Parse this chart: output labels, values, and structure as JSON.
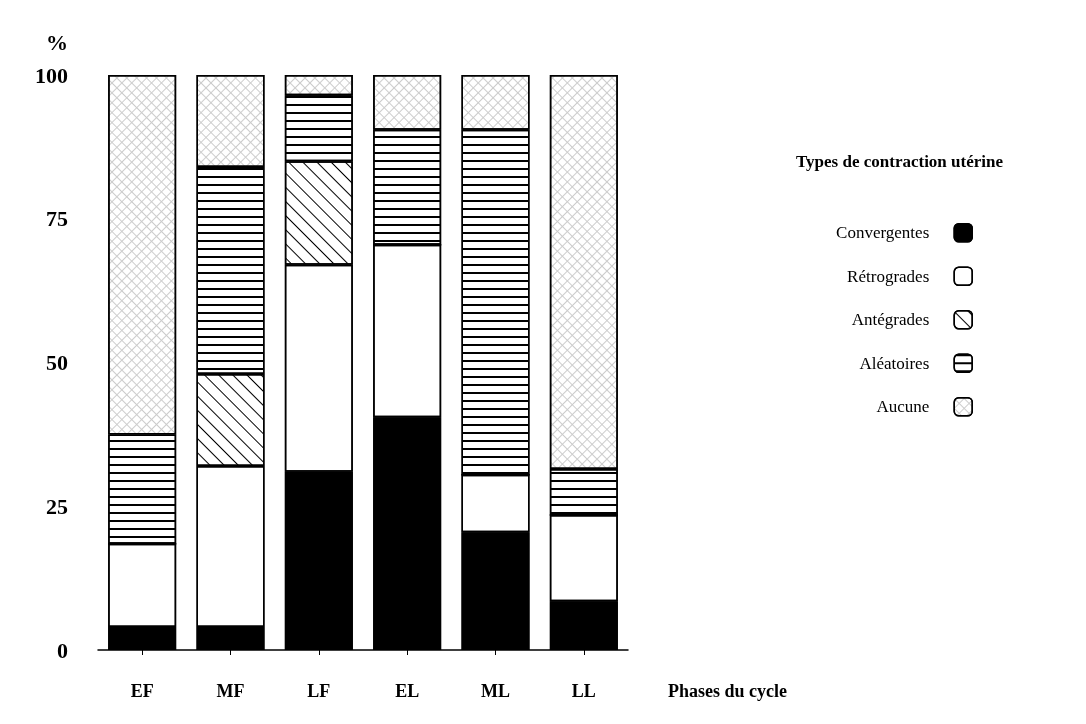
{
  "chart_data": {
    "type": "bar",
    "stacked": true,
    "ylabel": "%",
    "xlabel": "Phases du cycle",
    "legend_title": "Types de contraction utérine",
    "legend": "right",
    "grid": false,
    "categories": [
      "EF",
      "MF",
      "LF",
      "EL",
      "ML",
      "LL"
    ],
    "ylim": [
      0,
      100
    ],
    "yticks": [
      0,
      25,
      50,
      75,
      100
    ],
    "series": [
      {
        "name": "Convergentes",
        "color": "#000000",
        "values": [
          4,
          4,
          31,
          40.5,
          20.5,
          8.5
        ]
      },
      {
        "name": "Rétrogrades",
        "color": "#ffffff",
        "values": [
          14.5,
          28,
          36,
          30,
          10,
          15
        ]
      },
      {
        "name": "Antégrades",
        "color": "#ffffff",
        "values": [
          0,
          16,
          18,
          0,
          0,
          0
        ]
      },
      {
        "name": "Aléatoires",
        "color": "#ffffff",
        "values": [
          19,
          36,
          11.5,
          20,
          60,
          8
        ]
      },
      {
        "name": "Aucune",
        "color": "#ffffff",
        "values": [
          62.5,
          16,
          3.5,
          9.5,
          9.5,
          68.5
        ]
      }
    ]
  }
}
